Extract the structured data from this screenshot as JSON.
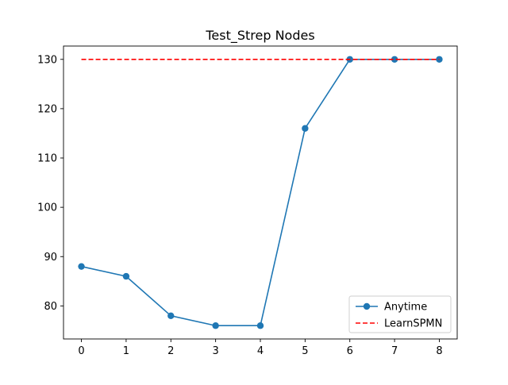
{
  "chart_data": {
    "type": "line",
    "title": "Test_Strep Nodes",
    "xlabel": "",
    "ylabel": "",
    "x": [
      0,
      1,
      2,
      3,
      4,
      5,
      6,
      7,
      8
    ],
    "xlim": [
      -0.4,
      8.4
    ],
    "ylim": [
      73.3,
      132.7
    ],
    "xticks": [
      0,
      1,
      2,
      3,
      4,
      5,
      6,
      7,
      8
    ],
    "yticks": [
      80,
      90,
      100,
      110,
      120,
      130
    ],
    "grid": false,
    "legend_position": "lower-right",
    "series": [
      {
        "name": "Anytime",
        "style": "solid-line-with-circle-markers",
        "color": "#1f77b4",
        "values": [
          88,
          86,
          78,
          76,
          76,
          116,
          130,
          130,
          130
        ]
      },
      {
        "name": "LearnSPMN",
        "style": "dashed-line",
        "color": "#ff0000",
        "values": [
          130,
          130,
          130,
          130,
          130,
          130,
          130,
          130,
          130
        ]
      }
    ]
  }
}
